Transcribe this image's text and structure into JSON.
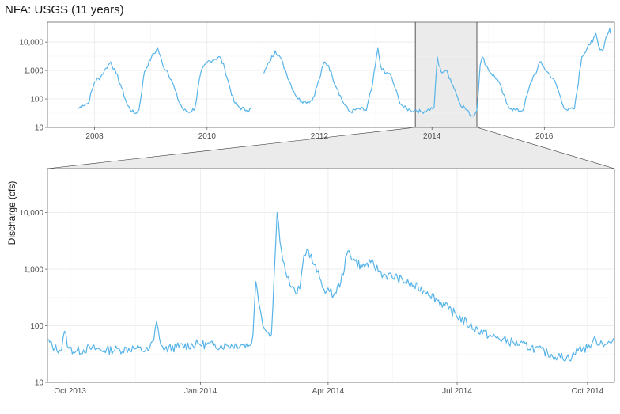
{
  "chart_data": [
    {
      "type": "line",
      "panel": "overview",
      "title": "NFA: USGS (11 years)",
      "xlabel": "",
      "ylabel": "",
      "y_scale": "log",
      "ylim": [
        10,
        50000
      ],
      "xlim": [
        "2007-03-01",
        "2017-04-01"
      ],
      "x_ticks": [
        "2008",
        "2010",
        "2012",
        "2014",
        "2016"
      ],
      "y_ticks": [
        "10",
        "100",
        "1,000",
        "10,000"
      ],
      "line_color": "#56b4e9",
      "grid": true,
      "highlight_range": [
        "2013-09-15",
        "2014-10-20"
      ],
      "highlight_color": "#ebebeb",
      "series": [
        {
          "x": [
            "2007-09-15",
            "2007-10-15",
            "2007-11-20",
            "2008-01-01",
            "2008-02-10",
            "2008-03-15",
            "2008-04-15",
            "2008-05-20",
            "2008-06-25",
            "2008-08-01",
            "2008-09-15",
            "2008-10-15",
            "2008-11-20",
            "2009-01-05",
            "2009-02-15",
            "2009-03-20",
            "2009-04-20",
            "2009-05-20",
            "2009-06-25",
            "2009-08-01",
            "2009-09-15",
            "2009-10-15",
            "2009-11-20",
            "2010-01-01",
            "2010-02-15",
            "2010-03-25",
            "2010-04-25",
            "2010-05-25",
            "2010-06-25",
            "2010-08-01",
            "2010-09-15",
            "2010-10-15",
            "2010-11-25",
            "2011-01-05",
            "2011-02-10",
            "2011-03-20",
            "2011-04-20",
            "2011-05-25",
            "2011-07-01",
            "2011-08-15",
            "2011-10-01",
            "2011-11-15",
            "2012-01-01",
            "2012-02-01",
            "2012-03-01",
            "2012-03-25",
            "2012-05-01",
            "2012-06-01",
            "2012-07-15",
            "2012-09-15",
            "2012-11-01",
            "2012-12-10",
            "2013-01-15",
            "2013-02-01",
            "2013-03-01",
            "2013-04-01",
            "2013-05-01",
            "2013-06-01",
            "2013-07-01",
            "2013-08-15",
            "2013-09-20",
            "2013-10-20",
            "2013-12-01",
            "2014-01-15",
            "2014-02-05",
            "2014-02-15",
            "2014-03-01",
            "2014-04-01",
            "2014-05-01",
            "2014-06-01",
            "2014-07-01",
            "2014-08-01",
            "2014-09-01",
            "2014-09-25",
            "2014-10-20",
            "2014-11-10",
            "2014-11-25",
            "2014-12-20",
            "2015-01-20",
            "2015-03-01",
            "2015-04-01",
            "2015-05-01",
            "2015-06-01",
            "2015-07-01",
            "2015-08-15",
            "2015-09-20",
            "2015-10-20",
            "2015-11-15",
            "2015-12-01",
            "2015-12-20",
            "2016-01-20",
            "2016-03-01",
            "2016-04-01",
            "2016-05-01",
            "2016-06-01",
            "2016-07-15",
            "2016-09-01",
            "2016-10-15",
            "2016-11-10",
            "2016-12-01",
            "2016-12-20",
            "2017-01-15",
            "2017-02-05",
            "2017-03-01",
            "2017-03-05"
          ],
          "y": [
            45,
            60,
            70,
            400,
            600,
            1200,
            2000,
            800,
            250,
            60,
            30,
            40,
            900,
            3000,
            6000,
            1500,
            900,
            400,
            100,
            40,
            35,
            50,
            800,
            2000,
            2500,
            3000,
            1200,
            300,
            80,
            50,
            40,
            45,
            null,
            800,
            2000,
            5000,
            3000,
            1000,
            300,
            100,
            80,
            90,
            500,
            2000,
            1500,
            600,
            200,
            80,
            35,
            45,
            40,
            300,
            6000,
            1500,
            800,
            800,
            300,
            90,
            50,
            40,
            40,
            35,
            40,
            50,
            3000,
            1500,
            900,
            1000,
            500,
            200,
            70,
            50,
            30,
            25,
            40,
            1500,
            3000,
            1500,
            800,
            500,
            200,
            70,
            45,
            40,
            40,
            200,
            600,
            1000,
            2000,
            1500,
            900,
            500,
            200,
            60,
            40,
            45,
            3000,
            8000,
            10000,
            20000,
            7000,
            5000,
            15000,
            30000,
            20000
          ]
        }
      ]
    },
    {
      "type": "line",
      "panel": "detail",
      "title": "",
      "xlabel": "",
      "ylabel": "Discharge (cfs)",
      "y_scale": "log",
      "ylim": [
        10,
        60000
      ],
      "xlim": [
        "2013-09-15",
        "2014-10-20"
      ],
      "x_ticks": [
        "Oct 2013",
        "Jan 2014",
        "Apr 2014",
        "Jul 2014",
        "Oct 2014"
      ],
      "y_ticks": [
        "10",
        "100",
        "1,000",
        "10,000"
      ],
      "line_color": "#56b4e9",
      "grid": true,
      "series": [
        {
          "x": [
            "2013-09-15",
            "2013-09-20",
            "2013-09-25",
            "2013-09-27",
            "2013-09-30",
            "2013-10-05",
            "2013-10-15",
            "2013-10-25",
            "2013-11-05",
            "2013-11-15",
            "2013-11-25",
            "2013-11-29",
            "2013-12-01",
            "2013-12-03",
            "2013-12-06",
            "2013-12-15",
            "2013-12-31",
            "2014-01-10",
            "2014-01-20",
            "2014-01-30",
            "2014-02-05",
            "2014-02-07",
            "2014-02-09",
            "2014-02-12",
            "2014-02-15",
            "2014-02-18",
            "2014-02-20",
            "2014-02-24",
            "2014-02-27",
            "2014-03-02",
            "2014-03-06",
            "2014-03-09",
            "2014-03-12",
            "2014-03-15",
            "2014-03-18",
            "2014-03-22",
            "2014-03-26",
            "2014-03-29",
            "2014-04-02",
            "2014-04-05",
            "2014-04-10",
            "2014-04-15",
            "2014-04-20",
            "2014-04-25",
            "2014-05-01",
            "2014-05-10",
            "2014-05-20",
            "2014-05-28",
            "2014-06-10",
            "2014-06-25",
            "2014-07-10",
            "2014-07-25",
            "2014-08-10",
            "2014-08-25",
            "2014-09-10",
            "2014-09-20",
            "2014-09-25",
            "2014-10-01",
            "2014-10-05",
            "2014-10-15",
            "2014-10-20"
          ],
          "y": [
            55,
            40,
            38,
            80,
            40,
            35,
            40,
            37,
            38,
            40,
            36,
            55,
            120,
            60,
            38,
            42,
            48,
            45,
            45,
            47,
            45,
            70,
            600,
            200,
            90,
            75,
            70,
            10000,
            2200,
            900,
            480,
            380,
            450,
            1800,
            2200,
            1200,
            700,
            450,
            400,
            350,
            600,
            2100,
            1400,
            1100,
            1300,
            800,
            700,
            550,
            400,
            200,
            100,
            65,
            50,
            40,
            28,
            28,
            40,
            40,
            55,
            48,
            52
          ]
        }
      ]
    }
  ]
}
